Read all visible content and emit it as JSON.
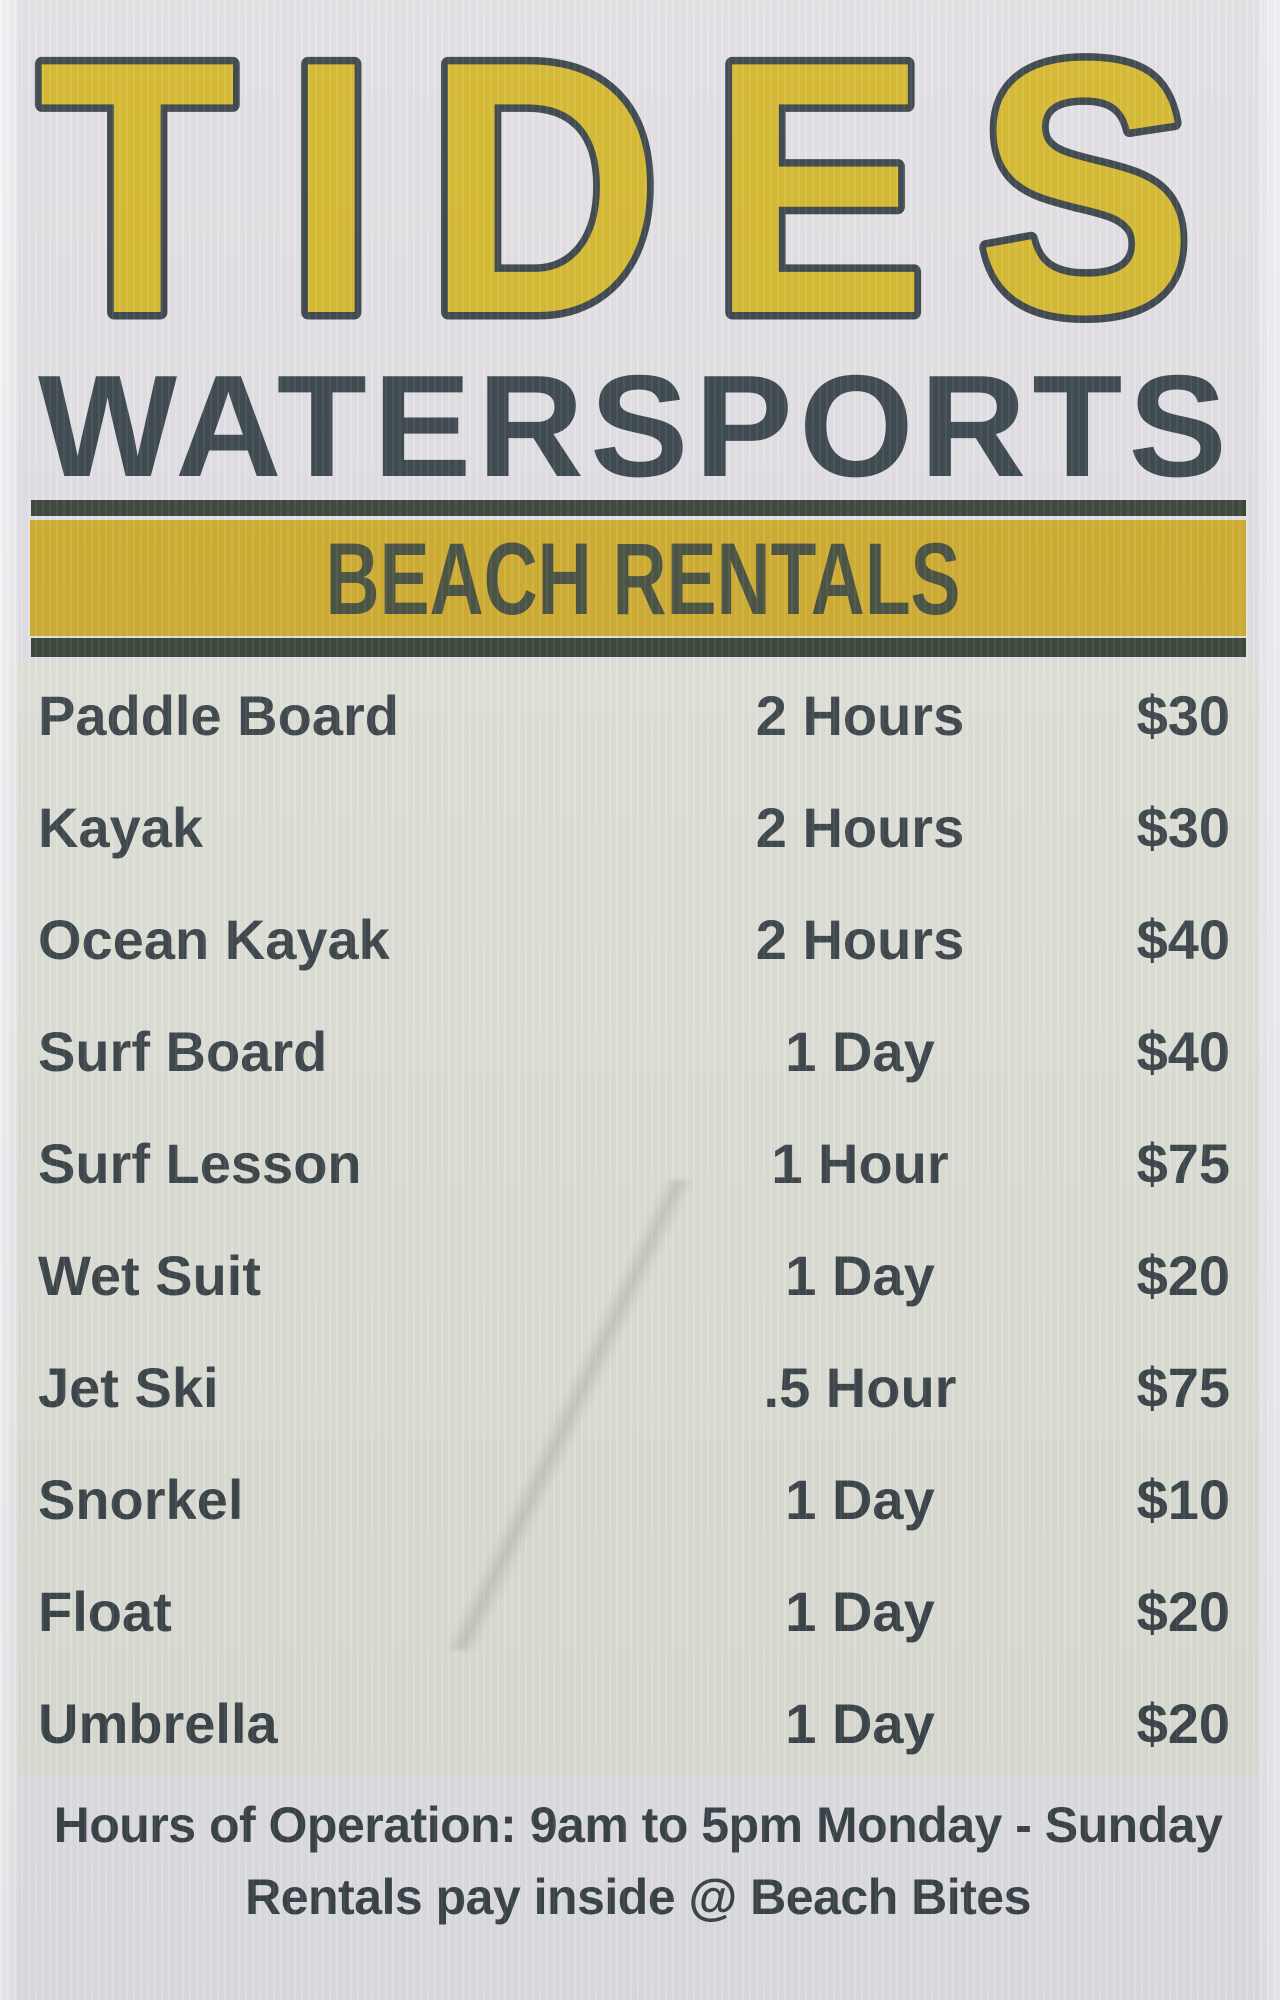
{
  "sign": {
    "title": "TIDES",
    "subtitle": "WATERSPORTS",
    "banner": "BEACH RENTALS",
    "rentals": [
      {
        "item": "Paddle Board",
        "duration": "2 Hours",
        "price": "$30"
      },
      {
        "item": "Kayak",
        "duration": "2 Hours",
        "price": "$30"
      },
      {
        "item": "Ocean Kayak",
        "duration": "2 Hours",
        "price": "$40"
      },
      {
        "item": "Surf Board",
        "duration": "1 Day",
        "price": "$40"
      },
      {
        "item": "Surf Lesson",
        "duration": "1 Hour",
        "price": "$75"
      },
      {
        "item": "Wet Suit",
        "duration": "1 Day",
        "price": "$20"
      },
      {
        "item": "Jet Ski",
        "duration": ".5 Hour",
        "price": "$75"
      },
      {
        "item": "Snorkel",
        "duration": "1 Day",
        "price": "$10"
      },
      {
        "item": "Float",
        "duration": "1 Day",
        "price": "$20"
      },
      {
        "item": "Umbrella",
        "duration": "1 Day",
        "price": "$20"
      }
    ],
    "footer": {
      "line1": "Hours of Operation: 9am to 5pm Monday - Sunday",
      "line2": "Rentals pay inside @ Beach Bites"
    },
    "colors": {
      "letter_yellow": "#d6ba2e",
      "banner_yellow": "#d1ae2f",
      "dark_slate": "#39444a",
      "rule_dark": "#3a4438",
      "list_text": "#3b464b"
    }
  }
}
